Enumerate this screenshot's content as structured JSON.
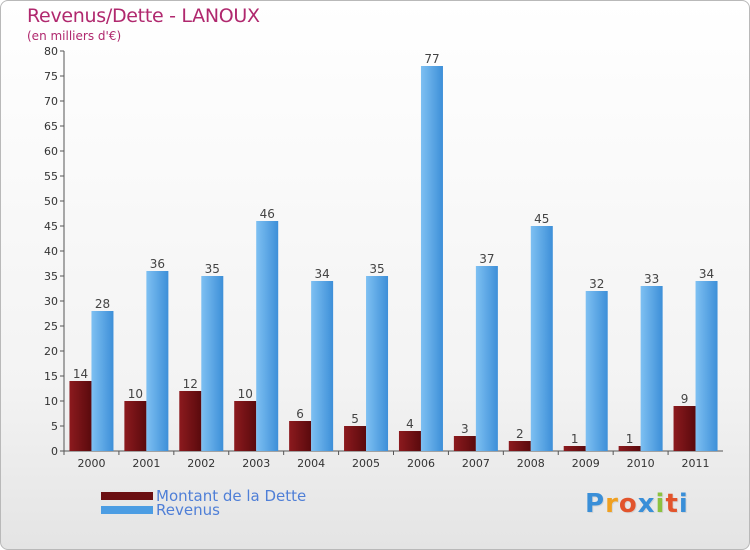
{
  "header": {
    "title": "Revenus/Dette - LANOUX",
    "subtitle": "(en milliers d'€)"
  },
  "colors": {
    "dette": "#6b0f12",
    "revenus": "#4c9de3",
    "axis": "#555555",
    "grid": "#cccccc"
  },
  "chart_data": {
    "type": "bar",
    "title": "Revenus/Dette - LANOUX",
    "ylabel": "(en milliers d'€)",
    "xlabel": "",
    "categories": [
      "2000",
      "2001",
      "2002",
      "2003",
      "2004",
      "2005",
      "2006",
      "2007",
      "2008",
      "2009",
      "2010",
      "2011"
    ],
    "series": [
      {
        "name": "Montant de la Dette",
        "values": [
          14,
          10,
          12,
          10,
          6,
          5,
          4,
          3,
          2,
          1,
          1,
          9
        ]
      },
      {
        "name": "Revenus",
        "values": [
          28,
          36,
          35,
          46,
          34,
          35,
          77,
          37,
          45,
          32,
          33,
          34
        ]
      }
    ],
    "ylim": [
      0,
      80
    ],
    "yticks": [
      0,
      5,
      10,
      15,
      20,
      25,
      30,
      35,
      40,
      45,
      50,
      55,
      60,
      65,
      70,
      75,
      80
    ],
    "grid": false,
    "legend": "bottom-left"
  },
  "legend": {
    "dette_label": "Montant de la Dette",
    "revenus_label": "Revenus"
  },
  "logo": {
    "letters": [
      "P",
      "r",
      "o",
      "x",
      "i",
      "t",
      "i"
    ],
    "colors": [
      "#3a8fd8",
      "#f0a020",
      "#e2542c",
      "#3a8fd8",
      "#8cc23f",
      "#e2542c",
      "#3a8fd8"
    ]
  }
}
